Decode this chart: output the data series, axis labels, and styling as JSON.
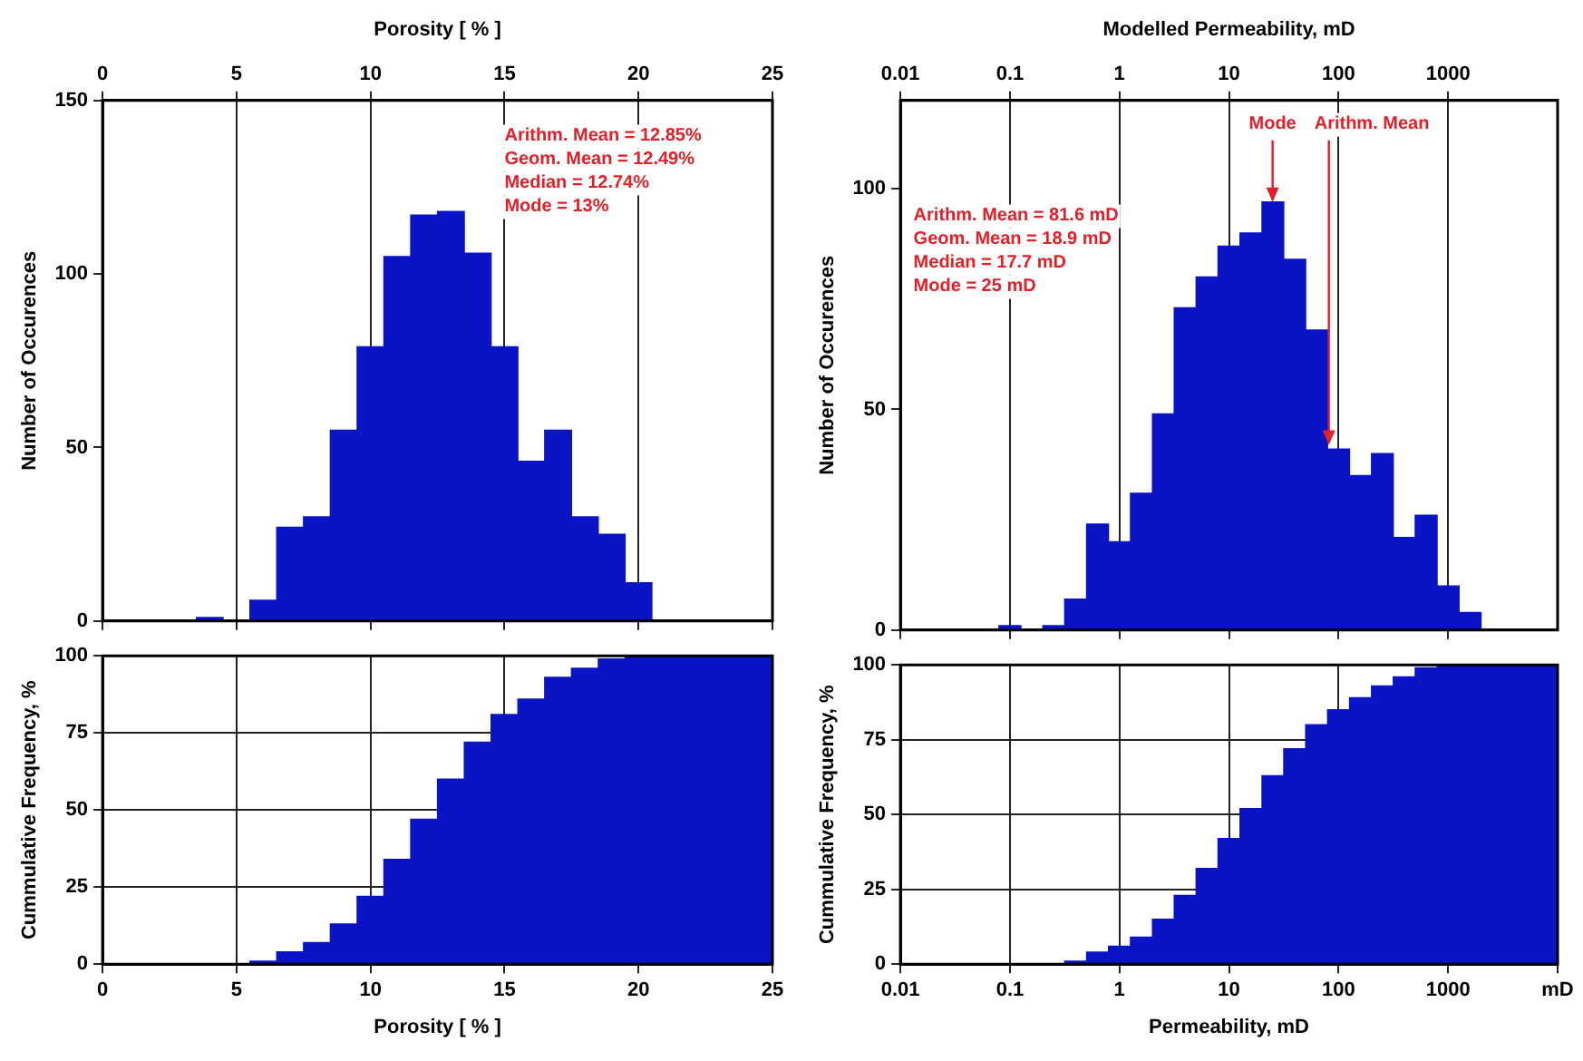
{
  "chart_data": [
    {
      "type": "histogram",
      "xlabel": "Porosity [ % ]",
      "ylabel": "Number of Occurences",
      "color": "#0a14c4",
      "grid": "x",
      "bins": [
        3.5,
        4.5,
        5.5,
        6.5,
        7.5,
        8.5,
        9.5,
        10.5,
        11.5,
        12.5,
        13.5,
        14.5,
        15.5,
        16.5,
        17.5,
        18.5,
        19.5,
        20.5
      ],
      "values": [
        1,
        0,
        6,
        27,
        30,
        55,
        79,
        105,
        117,
        118,
        106,
        79,
        46,
        55,
        30,
        25,
        11
      ],
      "xlim": [
        0,
        25
      ],
      "xticks": [
        0,
        5,
        10,
        15,
        20,
        25
      ],
      "ylim": [
        0,
        150
      ],
      "yticks": [
        0,
        50,
        100,
        150
      ],
      "annotations": [
        "Arithm. Mean = 12.85%",
        "Geom. Mean = 12.49%",
        "Median = 12.74%",
        "Mode = 13%"
      ]
    },
    {
      "type": "histogram",
      "xlabel": "Porosity [ % ]",
      "ylabel": "Cummulative Frequency, %",
      "color": "#0a14c4",
      "grid": true,
      "bins": [
        5.5,
        6.5,
        7.5,
        8.5,
        9.5,
        10.5,
        11.5,
        12.5,
        13.5,
        14.5,
        15.5,
        16.5,
        17.5,
        18.5,
        19.5,
        20.5,
        25
      ],
      "values": [
        1,
        4,
        7,
        13,
        22,
        34,
        47,
        60,
        72,
        81,
        86,
        93,
        96,
        99,
        100,
        100
      ],
      "xlim": [
        0,
        25
      ],
      "xticks": [
        0,
        5,
        10,
        15,
        20,
        25
      ],
      "ylim": [
        0,
        100
      ],
      "yticks": [
        0,
        25,
        50,
        75,
        100
      ]
    },
    {
      "type": "histogram",
      "xlabel": "Modelled Permeability, mD",
      "ylabel": "Number of Occurences",
      "color": "#0a14c4",
      "grid": "x",
      "log": "x",
      "bins": [
        0.0794,
        0.126,
        0.2,
        0.316,
        0.501,
        0.794,
        1.26,
        2,
        3.16,
        5.01,
        7.94,
        12.6,
        20,
        31.6,
        50.1,
        79.4,
        126,
        200,
        316,
        501,
        794,
        1260,
        2000
      ],
      "values": [
        1,
        0,
        1,
        7,
        24,
        20,
        31,
        49,
        73,
        80,
        87,
        90,
        97,
        84,
        68,
        41,
        35,
        40,
        21,
        26,
        10,
        4
      ],
      "xlim": [
        0.01,
        10000
      ],
      "xticks": [
        0.01,
        0.1,
        1,
        10,
        100,
        1000
      ],
      "ylim": [
        0,
        120
      ],
      "yticks": [
        0,
        50,
        100
      ],
      "annotations": [
        "Arithm. Mean = 81.6 mD",
        "Geom. Mean = 18.9 mD",
        "Median = 17.7 mD",
        "Mode = 25 mD",
        {
          "text": "Mode",
          "x": 25,
          "y": 97
        },
        {
          "text": "Arithm. Mean",
          "x": 81.6,
          "y": 42
        }
      ]
    },
    {
      "type": "histogram",
      "xlabel": "Permeability, mD",
      "ylabel": "Cummulative Frequency, %",
      "color": "#0a14c4",
      "grid": true,
      "log": "x",
      "bins": [
        0.316,
        0.501,
        0.794,
        1.26,
        2,
        3.16,
        5.01,
        7.94,
        12.6,
        20,
        31.6,
        50.1,
        79.4,
        126,
        200,
        316,
        501,
        794,
        1260,
        10000
      ],
      "values": [
        1,
        4,
        6,
        9,
        15,
        23,
        32,
        42,
        52,
        63,
        72,
        80,
        85,
        89,
        93,
        96,
        99,
        100,
        100
      ],
      "xlim": [
        0.01,
        10000
      ],
      "xticks": [
        0.01,
        0.1,
        1,
        10,
        100,
        1000,
        {
          "value": 10000,
          "label": "mD"
        }
      ],
      "ylim": [
        0,
        100
      ],
      "yticks": [
        0,
        25,
        50,
        75,
        100
      ]
    }
  ]
}
